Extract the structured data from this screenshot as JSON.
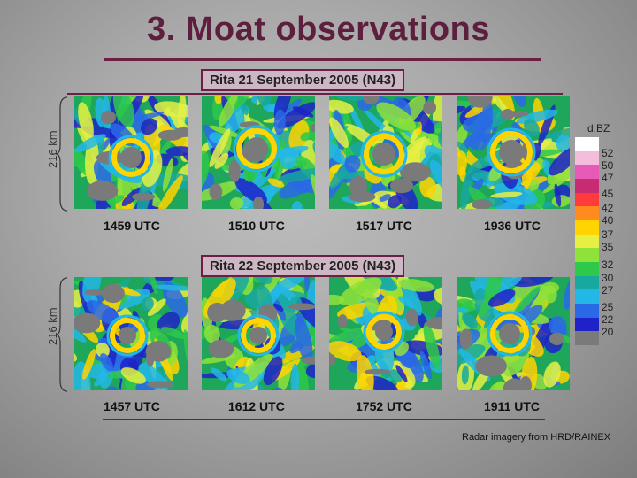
{
  "title": "3. Moat observations",
  "row1": {
    "header": "Rita 21 September  2005 (N43)",
    "scale": "216 km",
    "times": [
      "1459 UTC",
      "1510 UTC",
      "1517 UTC",
      "1936 UTC"
    ]
  },
  "row2": {
    "header": "Rita 22 September  2005 (N43)",
    "scale": "216 km",
    "times": [
      "1457 UTC",
      "1612 UTC",
      "1752 UTC",
      "1911 UTC"
    ]
  },
  "legend": {
    "title": "d.BZ",
    "values": [
      "52",
      "50",
      "47",
      "45",
      "42",
      "40",
      "37",
      "35",
      "32",
      "30",
      "27",
      "25",
      "22",
      "20"
    ],
    "colors": [
      "#ffffff",
      "#f4bddb",
      "#e85ab8",
      "#c72c73",
      "#ff3b3b",
      "#ff8a1e",
      "#ffd400",
      "#e6f043",
      "#8fe23a",
      "#2ec84a",
      "#17a8a0",
      "#23b7e8",
      "#2a69e6",
      "#1f22c9",
      "#7a7a7a"
    ]
  },
  "credit": "Radar imagery from HRD/RAINEX"
}
